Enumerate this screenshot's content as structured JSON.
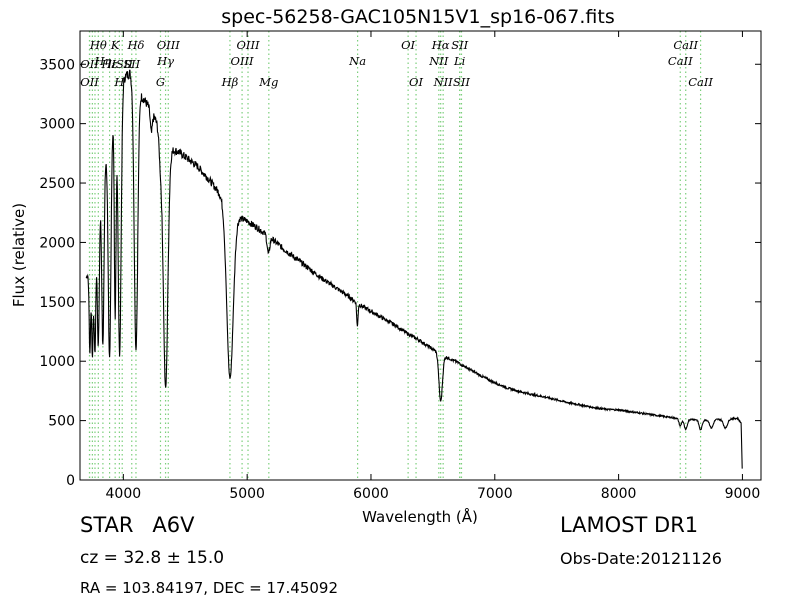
{
  "chart_data": {
    "type": "line",
    "title": "spec-56258-GAC105N15V1_sp16-067.fits",
    "xlabel": "Wavelength (Å)",
    "ylabel": "Flux (relative)",
    "xlim": [
      3650,
      9150
    ],
    "ylim": [
      0,
      3780
    ],
    "xticks": [
      4000,
      5000,
      6000,
      7000,
      8000,
      9000
    ],
    "yticks": [
      0,
      500,
      1000,
      1500,
      2000,
      2500,
      3000,
      3500
    ],
    "grid": false,
    "line_color": "#000000",
    "marker_color": "#7ccf7c",
    "continuum": [
      [
        3700,
        1700
      ],
      [
        3760,
        1850
      ],
      [
        3800,
        2300
      ],
      [
        3850,
        2700
      ],
      [
        3900,
        3000
      ],
      [
        3950,
        3250
      ],
      [
        4000,
        3380
      ],
      [
        4050,
        3430
      ],
      [
        4100,
        3350
      ],
      [
        4150,
        3230
      ],
      [
        4200,
        3150
      ],
      [
        4250,
        3050
      ],
      [
        4300,
        2950
      ],
      [
        4350,
        2800
      ],
      [
        4400,
        2780
      ],
      [
        4450,
        2760
      ],
      [
        4500,
        2720
      ],
      [
        4600,
        2640
      ],
      [
        4700,
        2520
      ],
      [
        4800,
        2380
      ],
      [
        4900,
        2230
      ],
      [
        5000,
        2180
      ],
      [
        5100,
        2110
      ],
      [
        5200,
        2030
      ],
      [
        5300,
        1940
      ],
      [
        5400,
        1860
      ],
      [
        5500,
        1780
      ],
      [
        5600,
        1700
      ],
      [
        5700,
        1630
      ],
      [
        5800,
        1560
      ],
      [
        5900,
        1480
      ],
      [
        6000,
        1420
      ],
      [
        6100,
        1360
      ],
      [
        6200,
        1300
      ],
      [
        6300,
        1230
      ],
      [
        6400,
        1170
      ],
      [
        6500,
        1100
      ],
      [
        6600,
        1040
      ],
      [
        6700,
        990
      ],
      [
        6800,
        930
      ],
      [
        6900,
        870
      ],
      [
        7000,
        820
      ],
      [
        7100,
        775
      ],
      [
        7200,
        745
      ],
      [
        7300,
        720
      ],
      [
        7400,
        700
      ],
      [
        7500,
        675
      ],
      [
        7600,
        650
      ],
      [
        7700,
        630
      ],
      [
        7800,
        610
      ],
      [
        7900,
        595
      ],
      [
        8000,
        590
      ],
      [
        8100,
        575
      ],
      [
        8200,
        560
      ],
      [
        8300,
        545
      ],
      [
        8400,
        530
      ],
      [
        8500,
        515
      ],
      [
        8600,
        510
      ],
      [
        8700,
        505
      ],
      [
        8800,
        510
      ],
      [
        8900,
        515
      ],
      [
        8960,
        520
      ],
      [
        8990,
        480
      ],
      [
        9000,
        0
      ]
    ],
    "absorption": [
      {
        "center": 3730,
        "depth": 700,
        "width": 6
      },
      {
        "center": 3750,
        "depth": 780,
        "width": 6
      },
      {
        "center": 3771,
        "depth": 900,
        "width": 7
      },
      {
        "center": 3798,
        "depth": 1150,
        "width": 8
      },
      {
        "center": 3835,
        "depth": 1450,
        "width": 9
      },
      {
        "center": 3889,
        "depth": 1900,
        "width": 11
      },
      {
        "center": 3934,
        "depth": 1800,
        "width": 7
      },
      {
        "center": 3970,
        "depth": 2250,
        "width": 12
      },
      {
        "center": 4102,
        "depth": 2250,
        "width": 14
      },
      {
        "center": 4226,
        "depth": 180,
        "width": 8
      },
      {
        "center": 4300,
        "depth": 250,
        "width": 12
      },
      {
        "center": 4341,
        "depth": 2050,
        "width": 18
      },
      {
        "center": 4861,
        "depth": 1430,
        "width": 26
      },
      {
        "center": 5172,
        "depth": 150,
        "width": 10
      },
      {
        "center": 5890,
        "depth": 200,
        "width": 5
      },
      {
        "center": 6563,
        "depth": 400,
        "width": 14
      },
      {
        "center": 8498,
        "depth": 60,
        "width": 10
      },
      {
        "center": 8542,
        "depth": 90,
        "width": 12
      },
      {
        "center": 8662,
        "depth": 85,
        "width": 12
      },
      {
        "center": 8750,
        "depth": 70,
        "width": 14
      },
      {
        "center": 8863,
        "depth": 75,
        "width": 16
      }
    ],
    "line_markers": [
      {
        "wl": 3727,
        "label": "OII",
        "row": 1
      },
      {
        "wl": 3727,
        "label": "OII",
        "row": 3
      },
      {
        "wl": 3750,
        "label": "",
        "row": -1
      },
      {
        "wl": 3771,
        "label": "",
        "row": -1
      },
      {
        "wl": 3798,
        "label": "Hθ",
        "row": 0
      },
      {
        "wl": 3835,
        "label": "Hη",
        "row": 2
      },
      {
        "wl": 3889,
        "label": "Hε",
        "row": 1
      },
      {
        "wl": 3934,
        "label": "K",
        "row": 0
      },
      {
        "wl": 3968,
        "label": "H",
        "row": 3
      },
      {
        "wl": 3991,
        "label": "ISII",
        "row": 1
      },
      {
        "wl": 4068,
        "label": "SII",
        "row": 1
      },
      {
        "wl": 4102,
        "label": "Hδ",
        "row": 0
      },
      {
        "wl": 4300,
        "label": "G",
        "row": 3
      },
      {
        "wl": 4341,
        "label": "Hγ",
        "row": 2
      },
      {
        "wl": 4363,
        "label": "OIII",
        "row": 0
      },
      {
        "wl": 4861,
        "label": "Hβ",
        "row": 3
      },
      {
        "wl": 4959,
        "label": "OIII",
        "row": 2
      },
      {
        "wl": 5007,
        "label": "OIII",
        "row": 0
      },
      {
        "wl": 5175,
        "label": "Mg",
        "row": 3
      },
      {
        "wl": 5892,
        "label": "Na",
        "row": 2
      },
      {
        "wl": 6300,
        "label": "OI",
        "row": 0
      },
      {
        "wl": 6364,
        "label": "OI",
        "row": 3
      },
      {
        "wl": 6548,
        "label": "NII",
        "row": 2
      },
      {
        "wl": 6563,
        "label": "Hα",
        "row": 0
      },
      {
        "wl": 6583,
        "label": "NII",
        "row": 3
      },
      {
        "wl": 6716,
        "label": "Li",
        "row": 2
      },
      {
        "wl": 6717,
        "label": "SII",
        "row": 0
      },
      {
        "wl": 6731,
        "label": "SII",
        "row": 3
      },
      {
        "wl": 8498,
        "label": "CaII",
        "row": 2
      },
      {
        "wl": 8542,
        "label": "CaII",
        "row": 0
      },
      {
        "wl": 8662,
        "label": "CaII",
        "row": 3
      }
    ]
  },
  "footer": {
    "object_class": "STAR",
    "subclass": "A6V",
    "survey": "LAMOST DR1",
    "cz_text": "cz = 32.8 ± 15.0",
    "obs_date": "Obs-Date:20121126",
    "radec": "RA = 103.84197, DEC = 17.45092"
  }
}
